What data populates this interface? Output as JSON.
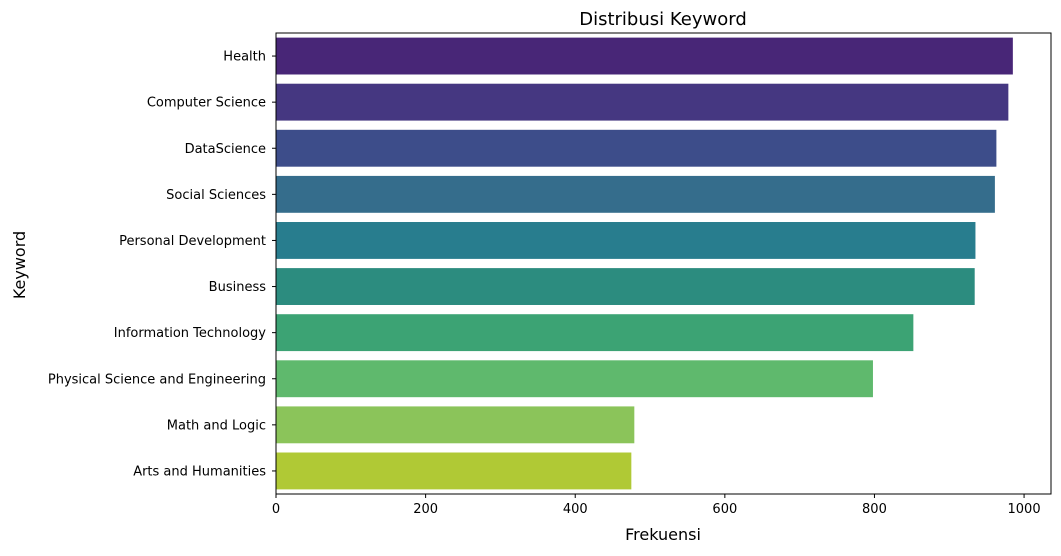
{
  "chart_data": {
    "type": "bar",
    "orientation": "horizontal",
    "title": "Distribusi Keyword",
    "xlabel": "Frekuensi",
    "ylabel": "Keyword",
    "categories": [
      "Health",
      "Computer Science",
      "DataScience",
      "Social Sciences",
      "Personal Development",
      "Business",
      "Information Technology",
      "Physical Science and Engineering",
      "Math and Logic",
      "Arts and Humanities"
    ],
    "values": [
      985,
      979,
      963,
      961,
      935,
      934,
      852,
      798,
      479,
      475
    ],
    "colors": [
      "#482677",
      "#453781",
      "#3d4d8a",
      "#356d8c",
      "#287d8e",
      "#2c8c7f",
      "#3ca374",
      "#5fb96d",
      "#8bc45a",
      "#b0c935"
    ],
    "xlim": [
      0,
      1036
    ],
    "xticks": [
      0,
      200,
      400,
      600,
      800,
      1000
    ],
    "grid": false
  }
}
